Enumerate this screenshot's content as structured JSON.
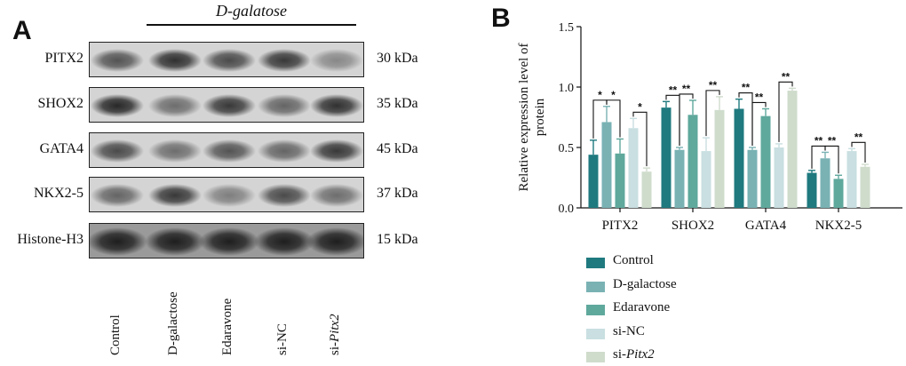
{
  "panel_a": {
    "letter": "A",
    "group_title": "D-galatose",
    "rows": [
      {
        "label": "PITX2",
        "kda": "30 kDa"
      },
      {
        "label": "SHOX2",
        "kda": "35 kDa"
      },
      {
        "label": "GATA4",
        "kda": "45 kDa"
      },
      {
        "label": "NKX2-5",
        "kda": "37 kDa"
      },
      {
        "label": "Histone-H3",
        "kda": "15 kDa"
      }
    ],
    "lanes": [
      "Control",
      "D-galactose",
      "Edaravone",
      "si-NC",
      "si-Pitx2"
    ],
    "band_intensity": [
      [
        0.7,
        0.9,
        0.75,
        0.85,
        0.4
      ],
      [
        0.95,
        0.55,
        0.85,
        0.6,
        0.9
      ],
      [
        0.75,
        0.55,
        0.7,
        0.6,
        0.85
      ],
      [
        0.6,
        0.85,
        0.45,
        0.75,
        0.55
      ],
      [
        1.0,
        1.0,
        1.0,
        1.0,
        1.0
      ]
    ]
  },
  "panel_b": {
    "letter": "B",
    "colors": {
      "Control": "#1f7a7f",
      "D-galactose": "#7ab2b4",
      "Edaravone": "#5fa89c",
      "si-NC": "#c9dfe1",
      "si-Pitx2": "#cfdccc"
    },
    "chart_data": {
      "type": "bar",
      "ylabel": "Relative expression level of protein",
      "xlabel": "",
      "ylim": [
        0,
        1.5
      ],
      "yticks": [
        "0.0",
        "0.5",
        "1.0",
        "1.5"
      ],
      "categories": [
        "PITX2",
        "SHOX2",
        "GATA4",
        "NKX2-5"
      ],
      "series": [
        {
          "name": "Control",
          "values": [
            0.44,
            0.83,
            0.82,
            0.29
          ],
          "errors": [
            0.12,
            0.05,
            0.08,
            0.02
          ]
        },
        {
          "name": "D-galactose",
          "values": [
            0.71,
            0.48,
            0.48,
            0.41
          ],
          "errors": [
            0.13,
            0.02,
            0.02,
            0.05
          ]
        },
        {
          "name": "Edaravone",
          "values": [
            0.45,
            0.77,
            0.76,
            0.24
          ],
          "errors": [
            0.12,
            0.12,
            0.06,
            0.03
          ]
        },
        {
          "name": "si-NC",
          "values": [
            0.66,
            0.47,
            0.5,
            0.47
          ],
          "errors": [
            0.08,
            0.11,
            0.03,
            0.02
          ]
        },
        {
          "name": "si-Pitx2",
          "values": [
            0.3,
            0.81,
            0.97,
            0.34
          ],
          "errors": [
            0.03,
            0.11,
            0.02,
            0.02
          ]
        }
      ],
      "significance": [
        {
          "category": "PITX2",
          "from": 0,
          "to": 1,
          "label": "*"
        },
        {
          "category": "PITX2",
          "from": 1,
          "to": 2,
          "label": "*"
        },
        {
          "category": "PITX2",
          "from": 3,
          "to": 4,
          "label": "*"
        },
        {
          "category": "SHOX2",
          "from": 0,
          "to": 1,
          "label": "**"
        },
        {
          "category": "SHOX2",
          "from": 1,
          "to": 2,
          "label": "**"
        },
        {
          "category": "SHOX2",
          "from": 3,
          "to": 4,
          "label": "**"
        },
        {
          "category": "GATA4",
          "from": 0,
          "to": 1,
          "label": "**"
        },
        {
          "category": "GATA4",
          "from": 1,
          "to": 2,
          "label": "**"
        },
        {
          "category": "GATA4",
          "from": 3,
          "to": 4,
          "label": "**"
        },
        {
          "category": "NKX2-5",
          "from": 0,
          "to": 1,
          "label": "**"
        },
        {
          "category": "NKX2-5",
          "from": 1,
          "to": 2,
          "label": "**"
        },
        {
          "category": "NKX2-5",
          "from": 3,
          "to": 4,
          "label": "**"
        }
      ]
    },
    "legend": [
      {
        "name": "Control",
        "prefix": "Control",
        "italic": ""
      },
      {
        "name": "D-galactose",
        "prefix": "D-galactose",
        "italic": ""
      },
      {
        "name": "Edaravone",
        "prefix": "Edaravone",
        "italic": ""
      },
      {
        "name": "si-NC",
        "prefix": "si-NC",
        "italic": ""
      },
      {
        "name": "si-Pitx2",
        "prefix": "si-",
        "italic": "Pitx2"
      }
    ]
  }
}
